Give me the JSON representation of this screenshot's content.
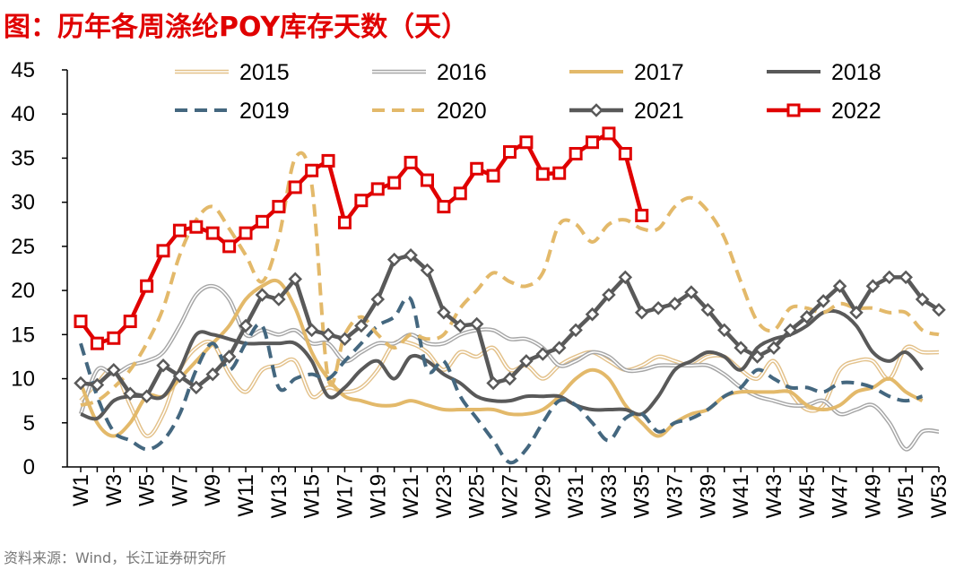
{
  "chart_data": {
    "type": "line",
    "title": "图：历年各周涤纶POY库存天数（天）",
    "source": "资料来源：Wind，长江证券研究所",
    "categories": [
      "W1",
      null,
      "W3",
      null,
      "W5",
      null,
      "W7",
      null,
      "W9",
      null,
      "W11",
      null,
      "W13",
      null,
      "W15",
      null,
      "W17",
      null,
      "W19",
      null,
      "W21",
      null,
      "W23",
      null,
      "W25",
      null,
      "W27",
      null,
      "W29",
      null,
      "W31",
      null,
      "W33",
      null,
      "W35",
      null,
      "W37",
      null,
      "W39",
      null,
      "W41",
      null,
      "W43",
      null,
      "W45",
      null,
      "W47",
      null,
      "W49",
      null,
      "W51",
      null,
      "W53"
    ],
    "ylim": [
      0,
      45
    ],
    "yticks": [
      0,
      5,
      10,
      15,
      20,
      25,
      30,
      35,
      40,
      45
    ],
    "grid": false,
    "series": [
      {
        "name": "2015",
        "color": "#e3c18a",
        "style": "double",
        "smooth": true,
        "values": [
          7.5,
          9.5,
          11,
          7,
          3.5,
          6,
          11,
          13.5,
          14,
          10.5,
          8.5,
          11,
          11.5,
          12,
          8,
          9,
          8.5,
          9,
          11,
          14,
          14,
          13,
          11,
          13,
          12.5,
          13.5,
          11,
          11.5,
          10,
          11.5,
          12.5,
          13,
          12,
          11,
          11.5,
          12.5,
          12,
          11.5,
          12.5,
          12.5,
          11,
          10,
          12,
          8.5,
          6.5,
          7,
          11,
          12,
          12,
          10,
          13.5,
          13,
          13
        ]
      },
      {
        "name": "2016",
        "color": "#a6a6a6",
        "style": "double",
        "smooth": true,
        "values": [
          6,
          11,
          10.5,
          11.5,
          12,
          13,
          16,
          19.5,
          20.5,
          19,
          15,
          15.5,
          15,
          15.5,
          14,
          14,
          12,
          13,
          14,
          14,
          15,
          14,
          14,
          15,
          15.5,
          15.5,
          14.5,
          14.5,
          13.5,
          11.5,
          12,
          13,
          12.5,
          11,
          11,
          11.5,
          11.5,
          11.5,
          11.5,
          10.5,
          9,
          8,
          7.5,
          7,
          7,
          7.5,
          6,
          6.5,
          7,
          5,
          2,
          4,
          4
        ]
      },
      {
        "name": "2017",
        "color": "#e3b96a",
        "style": "solid",
        "smooth": true,
        "values": [
          9.5,
          5,
          3.5,
          5,
          8,
          8,
          10,
          12,
          14,
          16,
          19,
          20.5,
          21,
          18,
          13,
          10,
          8,
          7.5,
          7,
          7,
          7.5,
          7,
          6.5,
          6.5,
          6.5,
          6.5,
          6,
          6,
          6.5,
          8,
          10,
          11,
          10,
          7,
          5,
          3.5,
          5,
          6,
          6.5,
          8,
          8.5,
          8.5,
          8.5,
          8.5,
          7,
          6.5,
          7,
          8.5,
          9,
          10,
          8.5,
          7.5,
          null
        ]
      },
      {
        "name": "2018",
        "color": "#595959",
        "style": "solid",
        "smooth": true,
        "values": [
          6,
          5.5,
          7.5,
          8,
          8,
          8,
          11,
          15,
          15,
          14.5,
          14,
          14,
          14,
          14,
          12,
          8,
          9,
          11,
          12,
          10,
          12.5,
          12,
          10.5,
          9.5,
          8,
          7.5,
          7.5,
          8,
          8,
          8,
          7,
          6.5,
          6.5,
          6.5,
          6,
          8,
          11,
          12,
          13,
          12.5,
          11,
          13.5,
          14.5,
          15,
          16,
          17.5,
          17.5,
          16,
          13,
          12,
          13,
          11,
          null
        ]
      },
      {
        "name": "2019",
        "color": "#44677f",
        "style": "dashed",
        "smooth": true,
        "values": [
          14,
          8,
          4,
          3,
          2,
          3,
          6,
          11,
          14,
          11,
          14,
          16,
          9,
          10,
          10.5,
          10,
          12,
          14,
          16,
          17,
          19,
          11,
          12,
          8,
          5.5,
          3,
          0.5,
          2,
          5,
          7.5,
          7,
          5,
          3,
          5.5,
          6,
          4,
          5,
          5.5,
          6.5,
          8,
          9,
          11,
          10,
          9,
          9,
          8.5,
          9.5,
          9.5,
          9,
          8,
          7.5,
          8,
          null
        ]
      },
      {
        "name": "2020",
        "color": "#e3b96a",
        "style": "dashed",
        "smooth": true,
        "values": [
          7,
          7.5,
          9,
          11,
          14,
          18,
          24,
          28,
          29.5,
          27,
          24,
          21,
          26,
          35,
          32,
          10,
          15,
          17,
          15,
          13.5,
          15,
          14.5,
          15,
          18,
          20,
          22,
          21,
          20.5,
          22,
          27.5,
          27.5,
          25.5,
          27.5,
          28,
          27,
          27,
          29.5,
          30.5,
          29,
          26,
          21,
          16.5,
          15.5,
          18,
          18,
          17.5,
          18.5,
          18,
          18,
          17.5,
          17.5,
          15.5,
          15
        ]
      },
      {
        "name": "2021",
        "color": "#595959",
        "style": "solid",
        "marker": "diamond",
        "smooth": false,
        "values": [
          9.5,
          9.3,
          11,
          8.3,
          8,
          11.5,
          10.3,
          9,
          10.5,
          12.5,
          16,
          19.5,
          19,
          21.3,
          15.5,
          15,
          14.5,
          16,
          19,
          23.5,
          24,
          22.3,
          17.5,
          16,
          16.2,
          9.5,
          10,
          12,
          12.8,
          13.5,
          15.5,
          17.3,
          19.5,
          21.5,
          17.5,
          18,
          18.5,
          19.8,
          17.8,
          15.5,
          13.5,
          12.5,
          13.5,
          15.5,
          17,
          18.8,
          20.5,
          17.5,
          20.5,
          21.5,
          21.5,
          19,
          17.8
        ]
      },
      {
        "name": "2022",
        "color": "#e00000",
        "style": "solid",
        "marker": "square",
        "smooth": false,
        "values": [
          16.5,
          14,
          14.6,
          16.5,
          20.5,
          24.5,
          26.8,
          27.2,
          26.5,
          25,
          26.5,
          27.8,
          29.5,
          31.7,
          33.6,
          34.7,
          27.7,
          30.2,
          31.5,
          32.2,
          34.5,
          32.5,
          29.5,
          31,
          33.8,
          33,
          35.7,
          36.8,
          33.2,
          33.3,
          35.5,
          36.8,
          37.8,
          35.5,
          28.5,
          null,
          null,
          null,
          null,
          null,
          null,
          null,
          null,
          null,
          null,
          null,
          null,
          null,
          null,
          null,
          null,
          null,
          null
        ]
      }
    ]
  }
}
